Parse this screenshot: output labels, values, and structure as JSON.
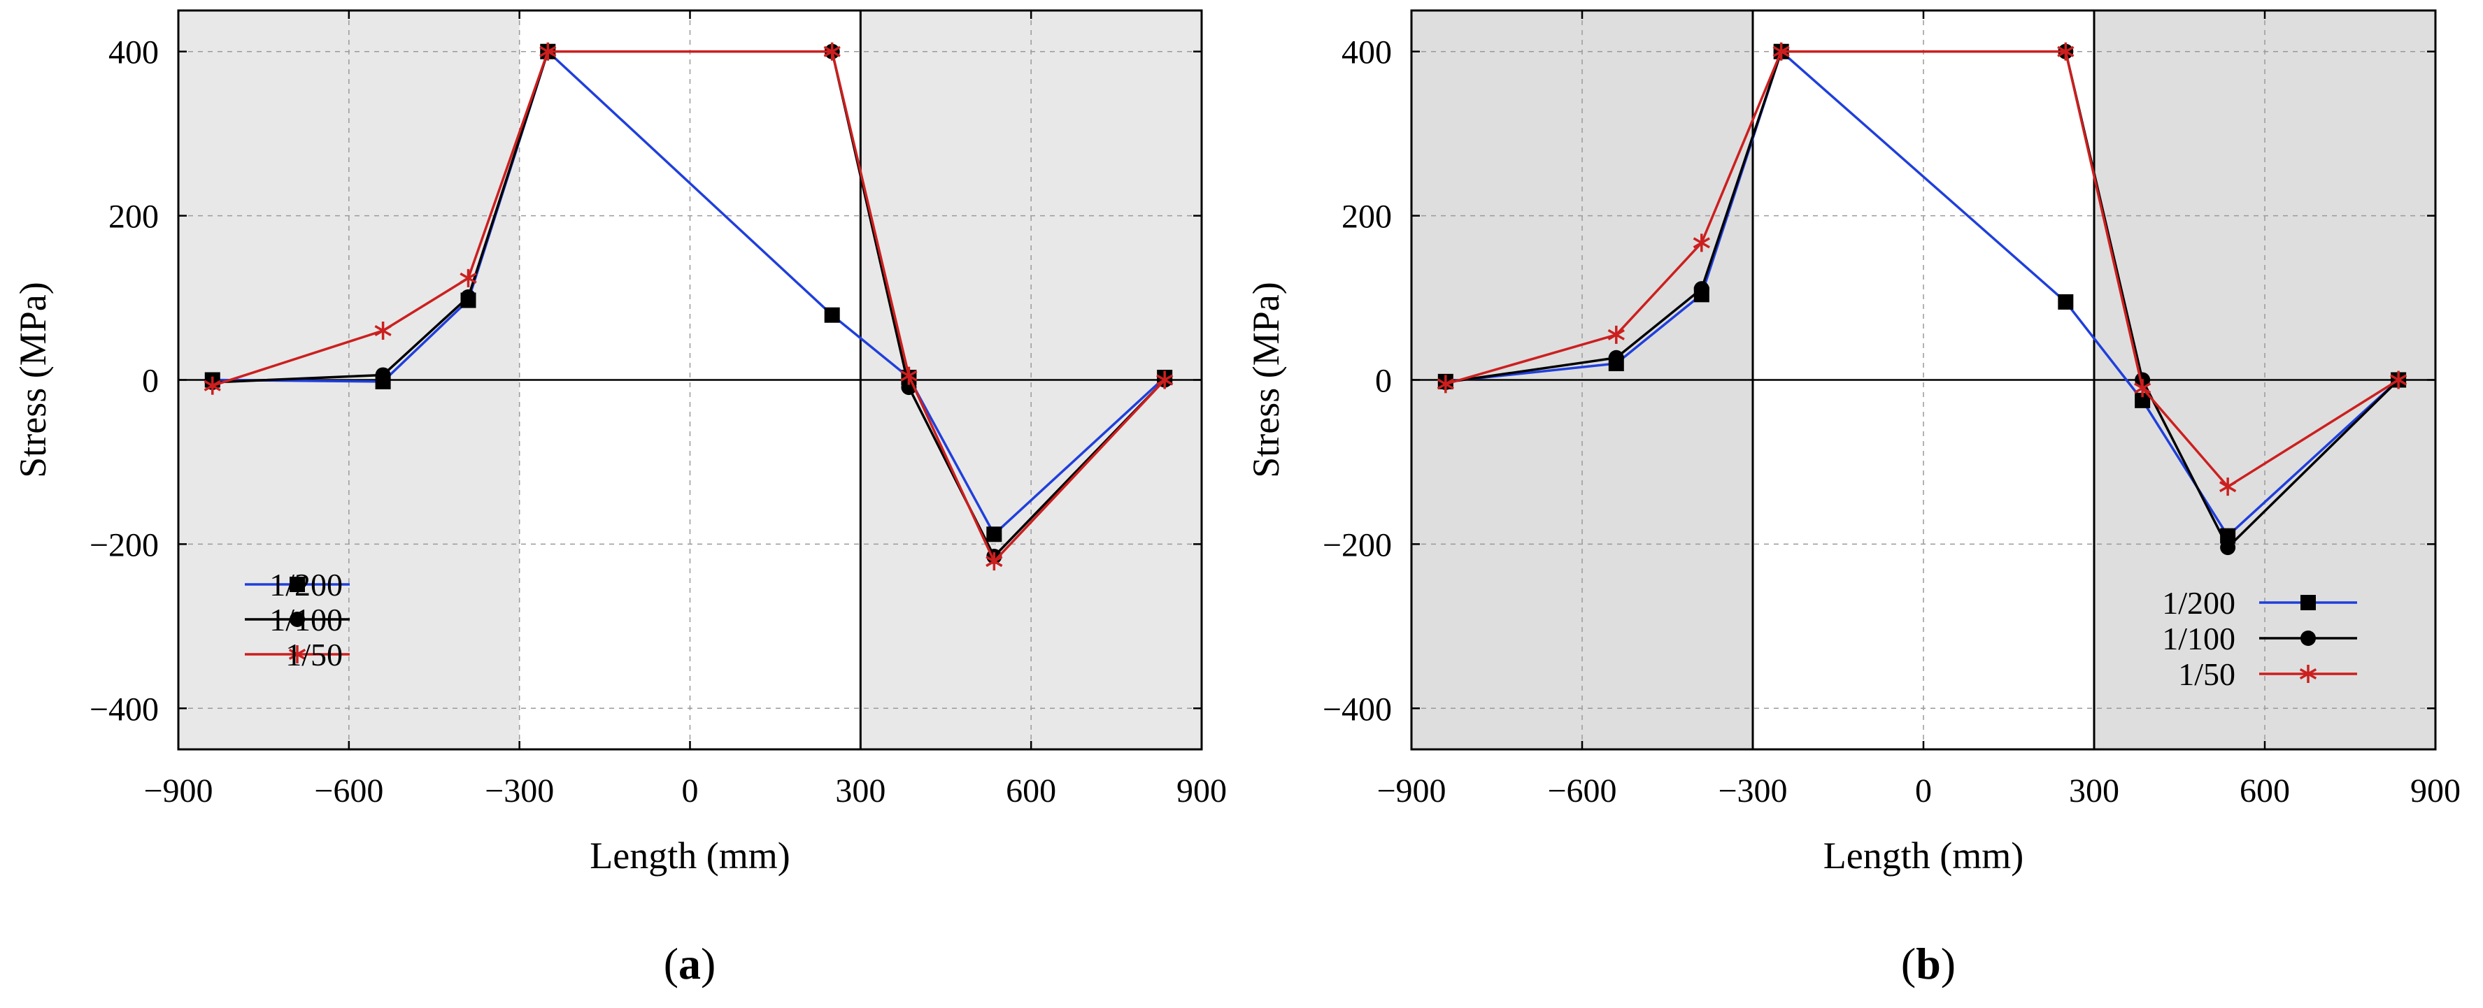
{
  "chart_data": [
    {
      "panel": "a",
      "type": "line",
      "caption_letter": "a",
      "xlabel": "Length (mm)",
      "ylabel": "Stress (MPa)",
      "xlim": [
        -900,
        900
      ],
      "ylim": [
        -450,
        450
      ],
      "xticks": [
        -900,
        -600,
        -300,
        0,
        300,
        600,
        900
      ],
      "xtick_labels": [
        "−900",
        "−600",
        "−300",
        "0",
        "300",
        "600",
        "900"
      ],
      "yticks": [
        -400,
        -200,
        0,
        200,
        400
      ],
      "ytick_labels": [
        "−400",
        "−200",
        "0",
        "200",
        "400"
      ],
      "grid": true,
      "shaded_regions": [
        [
          -900,
          -300
        ],
        [
          300,
          900
        ]
      ],
      "vertical_lines": [
        300
      ],
      "legend_position": "bottom-left",
      "series": [
        {
          "name": "1/200",
          "color": "#1f3fdc",
          "marker": "square",
          "x": [
            -840,
            -540,
            -390,
            -250,
            250,
            385,
            535,
            835
          ],
          "y": [
            0,
            -2,
            97,
            400,
            79,
            3,
            -188,
            3
          ]
        },
        {
          "name": "1/100",
          "color": "#000000",
          "marker": "circle",
          "x": [
            -840,
            -540,
            -390,
            -250,
            250,
            385,
            535,
            835
          ],
          "y": [
            -3,
            6,
            101,
            400,
            400,
            -9,
            -215,
            0
          ]
        },
        {
          "name": "1/50",
          "color": "#cc1f1f",
          "marker": "star",
          "x": [
            -840,
            -540,
            -390,
            -250,
            250,
            385,
            535,
            835
          ],
          "y": [
            -7,
            60,
            124,
            400,
            400,
            5,
            -221,
            0
          ]
        }
      ]
    },
    {
      "panel": "b",
      "type": "line",
      "caption_letter": "b",
      "xlabel": "Length (mm)",
      "ylabel": "Stress (MPa)",
      "xlim": [
        -900,
        900
      ],
      "ylim": [
        -450,
        450
      ],
      "xticks": [
        -900,
        -600,
        -300,
        0,
        300,
        600,
        900
      ],
      "xtick_labels": [
        "−900",
        "−600",
        "−300",
        "0",
        "300",
        "600",
        "900"
      ],
      "yticks": [
        -400,
        -200,
        0,
        200,
        400
      ],
      "ytick_labels": [
        "−400",
        "−200",
        "0",
        "200",
        "400"
      ],
      "grid": true,
      "shaded_regions": [
        [
          -900,
          -300
        ],
        [
          300,
          900
        ]
      ],
      "vertical_lines": [
        -300,
        300
      ],
      "legend_position": "bottom-right",
      "series": [
        {
          "name": "1/200",
          "color": "#1f3fdc",
          "marker": "square",
          "x": [
            -840,
            -540,
            -390,
            -250,
            250,
            385,
            535,
            835
          ],
          "y": [
            -2,
            20,
            104,
            400,
            95,
            -25,
            -190,
            0
          ]
        },
        {
          "name": "1/100",
          "color": "#000000",
          "marker": "circle",
          "x": [
            -840,
            -540,
            -390,
            -250,
            250,
            385,
            535,
            835
          ],
          "y": [
            -3,
            27,
            111,
            400,
            400,
            0,
            -204,
            0
          ]
        },
        {
          "name": "1/50",
          "color": "#cc1f1f",
          "marker": "star",
          "x": [
            -840,
            -540,
            -390,
            -250,
            250,
            385,
            535,
            835
          ],
          "y": [
            -5,
            55,
            167,
            400,
            400,
            -10,
            -130,
            0
          ]
        }
      ]
    }
  ]
}
